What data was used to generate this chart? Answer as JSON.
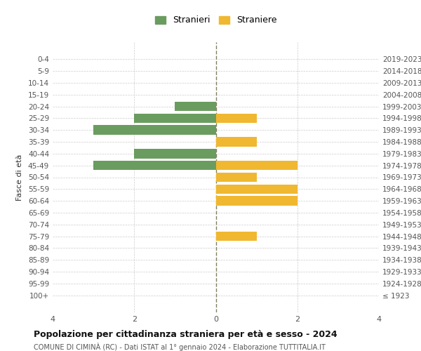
{
  "age_groups": [
    "100+",
    "95-99",
    "90-94",
    "85-89",
    "80-84",
    "75-79",
    "70-74",
    "65-69",
    "60-64",
    "55-59",
    "50-54",
    "45-49",
    "40-44",
    "35-39",
    "30-34",
    "25-29",
    "20-24",
    "15-19",
    "10-14",
    "5-9",
    "0-4"
  ],
  "birth_years": [
    "≤ 1923",
    "1924-1928",
    "1929-1933",
    "1934-1938",
    "1939-1943",
    "1944-1948",
    "1949-1953",
    "1954-1958",
    "1959-1963",
    "1964-1968",
    "1969-1973",
    "1974-1978",
    "1979-1983",
    "1984-1988",
    "1989-1993",
    "1994-1998",
    "1999-2003",
    "2004-2008",
    "2009-2013",
    "2014-2018",
    "2019-2023"
  ],
  "males": [
    0,
    0,
    0,
    0,
    0,
    0,
    0,
    0,
    0,
    0,
    0,
    3,
    2,
    0,
    3,
    2,
    1,
    0,
    0,
    0,
    0
  ],
  "females": [
    0,
    0,
    0,
    0,
    0,
    1,
    0,
    0,
    2,
    2,
    1,
    2,
    0,
    1,
    0,
    1,
    0,
    0,
    0,
    0,
    0
  ],
  "male_color": "#6a9c5f",
  "female_color": "#f0b830",
  "title_main": "Popolazione per cittadinanza straniera per età e sesso - 2024",
  "title_sub": "COMUNE DI CIMINÀ (RC) - Dati ISTAT al 1° gennaio 2024 - Elaborazione TUTTITALIA.IT",
  "legend_male": "Stranieri",
  "legend_female": "Straniere",
  "ylabel_left": "Fasce di età",
  "xlim": 4,
  "bar_height": 0.8,
  "background_color": "#ffffff",
  "grid_color": "#cccccc",
  "center_line_color": "#808060",
  "tick_color": "#555555",
  "axis_label_color": "#333333"
}
